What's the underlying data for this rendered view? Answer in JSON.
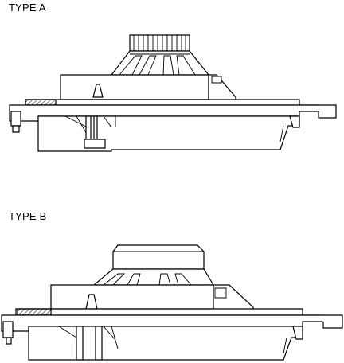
{
  "figures": [
    {
      "label": "TYPE A"
    },
    {
      "label": "TYPE B"
    }
  ]
}
